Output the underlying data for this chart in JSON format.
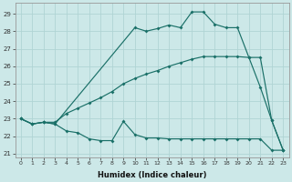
{
  "xlabel": "Humidex (Indice chaleur)",
  "xlim": [
    -0.5,
    23.5
  ],
  "ylim": [
    20.8,
    29.6
  ],
  "yticks": [
    21,
    22,
    23,
    24,
    25,
    26,
    27,
    28,
    29
  ],
  "xticks": [
    0,
    1,
    2,
    3,
    4,
    5,
    6,
    7,
    8,
    9,
    10,
    11,
    12,
    13,
    14,
    15,
    16,
    17,
    18,
    19,
    20,
    21,
    22,
    23
  ],
  "bg_color": "#cce8e8",
  "line_color": "#1a7068",
  "grid_color": "#b0d4d4",
  "upper_x": [
    0,
    1,
    2,
    3,
    10,
    11,
    12,
    13,
    14,
    15,
    16,
    17,
    18,
    19,
    20,
    21,
    22,
    23
  ],
  "upper_y": [
    23.0,
    22.7,
    22.8,
    22.7,
    28.2,
    28.0,
    28.15,
    28.35,
    28.2,
    29.1,
    29.1,
    28.4,
    28.2,
    28.2,
    26.5,
    24.8,
    22.9,
    21.2
  ],
  "mid_x": [
    0,
    1,
    2,
    3,
    4,
    5,
    6,
    7,
    8,
    9,
    10,
    11,
    12,
    13,
    14,
    15,
    16,
    17,
    18,
    19,
    20,
    21,
    22,
    23
  ],
  "mid_y": [
    23.0,
    22.7,
    22.8,
    22.8,
    23.3,
    23.6,
    23.9,
    24.2,
    24.55,
    25.0,
    25.3,
    25.55,
    25.75,
    26.0,
    26.2,
    26.4,
    26.55,
    26.55,
    26.55,
    26.55,
    26.5,
    26.5,
    22.9,
    21.2
  ],
  "lower_x": [
    0,
    1,
    2,
    3,
    4,
    5,
    6,
    7,
    8,
    9,
    10,
    11,
    12,
    13,
    14,
    15,
    16,
    17,
    18,
    19,
    20,
    21,
    22,
    23
  ],
  "lower_y": [
    23.0,
    22.7,
    22.8,
    22.7,
    22.3,
    22.2,
    21.85,
    21.75,
    21.75,
    22.85,
    22.1,
    21.9,
    21.9,
    21.85,
    21.85,
    21.85,
    21.85,
    21.85,
    21.85,
    21.85,
    21.85,
    21.85,
    21.2,
    21.2
  ]
}
